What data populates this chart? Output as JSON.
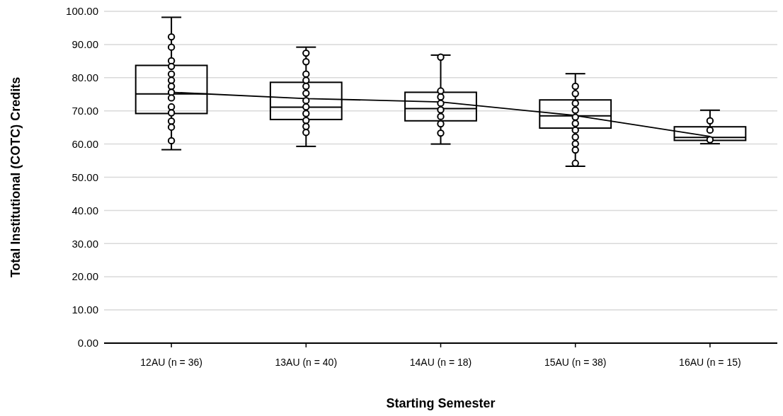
{
  "chart_data": {
    "type": "box",
    "xlabel": "Starting Semester",
    "ylabel": "Total Institutional (COTC) Credits",
    "categories": [
      "12AU (n = 36)",
      "13AU (n = 40)",
      "14AU (n = 18)",
      "15AU (n = 38)",
      "16AU (n = 15)"
    ],
    "color": "#000000",
    "boxes": [
      {
        "low": 58.3,
        "q1": 69.2,
        "median": 75.1,
        "q3": 83.7,
        "high": 98.2
      },
      {
        "low": 59.3,
        "q1": 67.4,
        "median": 71.1,
        "q3": 78.6,
        "high": 89.2
      },
      {
        "low": 60.0,
        "q1": 67.0,
        "median": 70.7,
        "q3": 75.6,
        "high": 86.8
      },
      {
        "low": 53.3,
        "q1": 64.8,
        "median": 68.5,
        "q3": 73.3,
        "high": 81.2
      },
      {
        "low": 60.1,
        "q1": 61.1,
        "median": 62.0,
        "q3": 65.2,
        "high": 70.2
      }
    ],
    "series": [
      {
        "type": "line",
        "color": "#000000",
        "marker": "none",
        "x": [
          "12AU (n = 36)",
          "13AU (n = 40)",
          "14AU (n = 18)",
          "15AU (n = 38)",
          "16AU (n = 15)"
        ],
        "values": [
          75.6,
          73.7,
          72.7,
          68.6,
          62.3
        ]
      },
      {
        "type": "scatter",
        "color": "#000000",
        "marker": "circle",
        "x": [
          "12AU (n = 36)",
          "12AU (n = 36)",
          "12AU (n = 36)",
          "12AU (n = 36)",
          "12AU (n = 36)",
          "12AU (n = 36)",
          "12AU (n = 36)",
          "12AU (n = 36)",
          "12AU (n = 36)",
          "12AU (n = 36)",
          "12AU (n = 36)",
          "12AU (n = 36)",
          "12AU (n = 36)",
          "12AU (n = 36)",
          "13AU (n = 40)",
          "13AU (n = 40)",
          "13AU (n = 40)",
          "13AU (n = 40)",
          "13AU (n = 40)",
          "13AU (n = 40)",
          "13AU (n = 40)",
          "13AU (n = 40)",
          "13AU (n = 40)",
          "13AU (n = 40)",
          "13AU (n = 40)",
          "13AU (n = 40)",
          "14AU (n = 18)",
          "14AU (n = 18)",
          "14AU (n = 18)",
          "14AU (n = 18)",
          "14AU (n = 18)",
          "14AU (n = 18)",
          "14AU (n = 18)",
          "14AU (n = 18)",
          "15AU (n = 38)",
          "15AU (n = 38)",
          "15AU (n = 38)",
          "15AU (n = 38)",
          "15AU (n = 38)",
          "15AU (n = 38)",
          "15AU (n = 38)",
          "15AU (n = 38)",
          "15AU (n = 38)",
          "15AU (n = 38)",
          "15AU (n = 38)",
          "16AU (n = 15)",
          "16AU (n = 15)",
          "16AU (n = 15)"
        ],
        "values": [
          92.3,
          89.2,
          85.1,
          83.4,
          81.1,
          79.2,
          77.4,
          75.6,
          73.9,
          71.2,
          69.4,
          66.9,
          65.1,
          61.0,
          87.4,
          84.8,
          81.1,
          79.2,
          77.4,
          75.3,
          73.1,
          71.2,
          69.2,
          67.1,
          65.3,
          63.5,
          86.2,
          76.0,
          74.2,
          72.3,
          70.3,
          68.3,
          66.1,
          63.3,
          77.4,
          75.2,
          72.3,
          70.2,
          68.1,
          66.2,
          64.2,
          62.1,
          60.1,
          58.2,
          54.2,
          67.0,
          64.2,
          61.3
        ]
      }
    ],
    "ylim": [
      0,
      100
    ],
    "yticks": [
      {
        "value": 0,
        "label": "0.00"
      },
      {
        "value": 10,
        "label": "10.00"
      },
      {
        "value": 20,
        "label": "20.00"
      },
      {
        "value": 30,
        "label": "30.00"
      },
      {
        "value": 40,
        "label": "40.00"
      },
      {
        "value": 50,
        "label": "50.00"
      },
      {
        "value": 60,
        "label": "60.00"
      },
      {
        "value": 70,
        "label": "70.00"
      },
      {
        "value": 80,
        "label": "80.00"
      },
      {
        "value": 90,
        "label": "90.00"
      },
      {
        "value": 100,
        "label": "100.00"
      }
    ],
    "grid": "y"
  }
}
